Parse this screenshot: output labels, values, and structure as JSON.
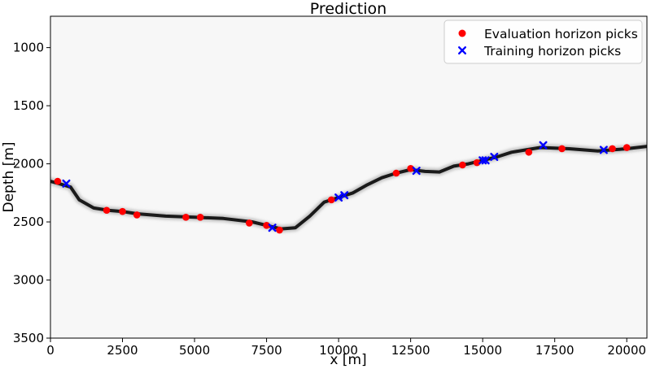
{
  "chart_data": {
    "type": "scatter",
    "title": "Prediction",
    "xlabel": "x [m]",
    "ylabel": "Depth [m]",
    "xlim": [
      0,
      20700
    ],
    "ylim": [
      3500,
      730
    ],
    "y_inverted": true,
    "grid": false,
    "legend_position": "top-right",
    "x_ticks": [
      0,
      2500,
      5000,
      7500,
      10000,
      12500,
      15000,
      17500,
      20000
    ],
    "y_ticks": [
      1000,
      1500,
      2000,
      2500,
      3000,
      3500
    ],
    "colors": {
      "background": "#f7f7f7",
      "horizon": "#1a1a1a",
      "evaluation": "#ff0000",
      "training": "#0000ff"
    },
    "background_image": "grayscale predicted horizon probability (dark band along the horizon)",
    "horizon_line": {
      "x": [
        0,
        300,
        700,
        1000,
        1500,
        2000,
        2500,
        3000,
        4000,
        5000,
        6000,
        7000,
        7500,
        8000,
        8500,
        9000,
        9500,
        10000,
        10500,
        11000,
        11500,
        12000,
        12500,
        13000,
        13500,
        14000,
        14500,
        15000,
        15500,
        16000,
        16500,
        17000,
        17500,
        18000,
        18500,
        19000,
        19500,
        20000,
        20700
      ],
      "y": [
        2150,
        2170,
        2200,
        2310,
        2380,
        2400,
        2410,
        2430,
        2450,
        2460,
        2470,
        2500,
        2530,
        2560,
        2550,
        2450,
        2330,
        2290,
        2250,
        2180,
        2120,
        2080,
        2050,
        2065,
        2070,
        2020,
        2000,
        1970,
        1940,
        1900,
        1880,
        1860,
        1865,
        1870,
        1880,
        1890,
        1880,
        1870,
        1850
      ]
    },
    "series": [
      {
        "name": "Evaluation horizon picks",
        "marker": "circle",
        "color": "#ff0000",
        "points": [
          [
            250,
            2150
          ],
          [
            1950,
            2400
          ],
          [
            2500,
            2410
          ],
          [
            3000,
            2440
          ],
          [
            4700,
            2460
          ],
          [
            5200,
            2460
          ],
          [
            6900,
            2510
          ],
          [
            7500,
            2530
          ],
          [
            7950,
            2570
          ],
          [
            9750,
            2310
          ],
          [
            12000,
            2080
          ],
          [
            12500,
            2040
          ],
          [
            14300,
            2010
          ],
          [
            14800,
            1990
          ],
          [
            16600,
            1900
          ],
          [
            17750,
            1870
          ],
          [
            19500,
            1870
          ],
          [
            20000,
            1860
          ]
        ]
      },
      {
        "name": "Training horizon picks",
        "marker": "x",
        "color": "#0000ff",
        "points": [
          [
            550,
            2170
          ],
          [
            7700,
            2550
          ],
          [
            10000,
            2290
          ],
          [
            10200,
            2270
          ],
          [
            12700,
            2060
          ],
          [
            15000,
            1970
          ],
          [
            15100,
            1970
          ],
          [
            15400,
            1940
          ],
          [
            17100,
            1840
          ],
          [
            19200,
            1880
          ]
        ]
      }
    ]
  }
}
